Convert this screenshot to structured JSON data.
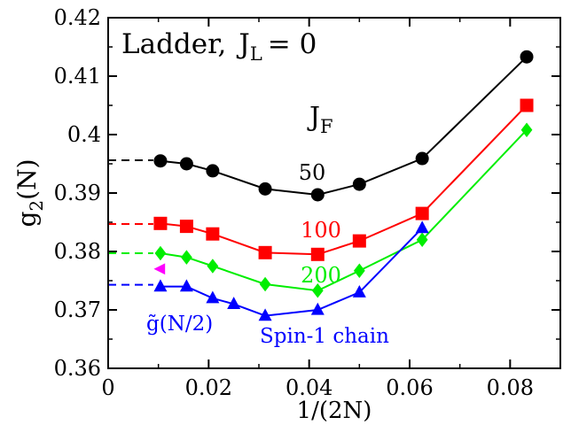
{
  "chart_data": {
    "type": "line",
    "title": "",
    "xlabel": "1/(2N)",
    "ylabel": "g2(N)",
    "xlim": [
      0,
      0.09
    ],
    "ylim": [
      0.36,
      0.42
    ],
    "xticks": [
      0,
      0.02,
      0.04,
      0.06,
      0.08
    ],
    "xtick_labels": [
      "0",
      "0.02",
      "0.04",
      "0.06",
      "0.08"
    ],
    "yticks": [
      0.36,
      0.37,
      0.38,
      0.39,
      0.4,
      0.41,
      0.42
    ],
    "ytick_labels": [
      "0.36",
      "0.37",
      "0.38",
      "0.39",
      "0.4",
      "0.41",
      "0.42"
    ],
    "grid": false,
    "panel_text": {
      "ladder": "Ladder,",
      "j": "J",
      "j_sub": "L",
      "equals": "= 0",
      "jf": "J",
      "jf_sub": "F"
    },
    "series": [
      {
        "name": "50",
        "color": "#000000",
        "marker": "circle",
        "x": [
          0.0104,
          0.0156,
          0.0208,
          0.03125,
          0.0417,
          0.05,
          0.0625,
          0.0833
        ],
        "y": [
          0.3955,
          0.395,
          0.3938,
          0.3907,
          0.3897,
          0.3915,
          0.3959,
          0.4133
        ],
        "extrapolation": 0.3956
      },
      {
        "name": "100",
        "color": "#ff0000",
        "marker": "square",
        "x": [
          0.0104,
          0.0156,
          0.0208,
          0.03125,
          0.0417,
          0.05,
          0.0625,
          0.0833
        ],
        "y": [
          0.3848,
          0.3843,
          0.383,
          0.3798,
          0.3795,
          0.3818,
          0.3865,
          0.405
        ],
        "extrapolation": 0.3847
      },
      {
        "name": "200",
        "color": "#00ee00",
        "marker": "diamond",
        "x": [
          0.0104,
          0.0156,
          0.0208,
          0.03125,
          0.0417,
          0.05,
          0.0625,
          0.0833
        ],
        "y": [
          0.3797,
          0.379,
          0.3775,
          0.3744,
          0.3733,
          0.3767,
          0.382,
          0.4008
        ],
        "extrapolation": 0.3797
      },
      {
        "name": "Spin-1 chain",
        "color": "#0000ff",
        "marker": "triangle-up",
        "x": [
          0.0104,
          0.0156,
          0.0208,
          0.025,
          0.03125,
          0.0417,
          0.05,
          0.0625
        ],
        "y": [
          0.374,
          0.374,
          0.372,
          0.371,
          0.369,
          0.37,
          0.373,
          0.384
        ],
        "extrapolation": 0.3743
      }
    ],
    "extra_points": [
      {
        "label": "g~(N/2)",
        "x": 0.0104,
        "y": 0.377,
        "color": "#ff00ff",
        "marker": "triangle-left"
      }
    ],
    "annotations": {
      "s50": "50",
      "s100": "100",
      "s200": "200",
      "spin1": "Spin-1 chain",
      "gtilde": "g̃(N/2)"
    }
  }
}
